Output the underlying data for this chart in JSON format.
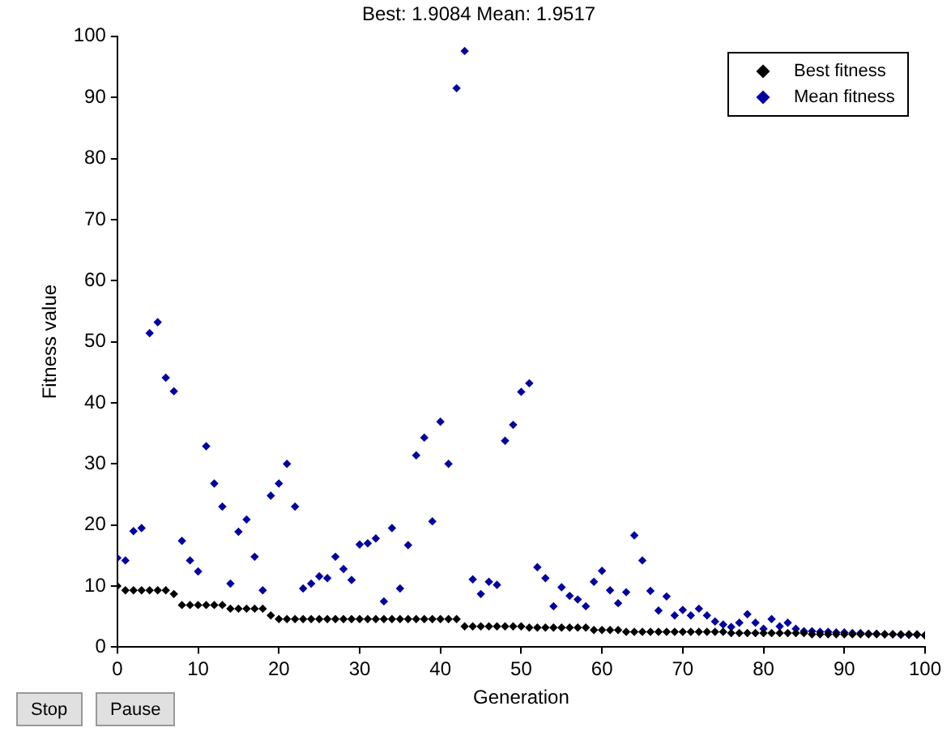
{
  "chart_data": {
    "type": "scatter",
    "title": "Best: 1.9084 Mean: 1.9517",
    "xlabel": "Generation",
    "ylabel": "Fitness value",
    "x": [
      0,
      1,
      2,
      3,
      4,
      5,
      6,
      7,
      8,
      9,
      10,
      11,
      12,
      13,
      14,
      15,
      16,
      17,
      18,
      19,
      20,
      21,
      22,
      23,
      24,
      25,
      26,
      27,
      28,
      29,
      30,
      31,
      32,
      33,
      34,
      35,
      36,
      37,
      38,
      39,
      40,
      41,
      42,
      43,
      44,
      45,
      46,
      47,
      48,
      49,
      50,
      51,
      52,
      53,
      54,
      55,
      56,
      57,
      58,
      59,
      60,
      61,
      62,
      63,
      64,
      65,
      66,
      67,
      68,
      69,
      70,
      71,
      72,
      73,
      74,
      75,
      76,
      77,
      78,
      79,
      80,
      81,
      82,
      83,
      84,
      85,
      86,
      87,
      88,
      89,
      90,
      91,
      92,
      93,
      94,
      95,
      96,
      97,
      98,
      99,
      100
    ],
    "series": [
      {
        "name": "Best fitness",
        "color": "#000000",
        "values": [
          10.0,
          9.3,
          9.3,
          9.3,
          9.3,
          9.3,
          9.3,
          8.7,
          6.9,
          6.9,
          6.9,
          6.9,
          6.9,
          6.9,
          6.3,
          6.3,
          6.3,
          6.3,
          6.3,
          5.2,
          4.6,
          4.6,
          4.6,
          4.6,
          4.6,
          4.6,
          4.6,
          4.6,
          4.6,
          4.6,
          4.6,
          4.6,
          4.6,
          4.6,
          4.6,
          4.6,
          4.6,
          4.6,
          4.6,
          4.6,
          4.6,
          4.6,
          4.6,
          3.4,
          3.4,
          3.4,
          3.4,
          3.4,
          3.4,
          3.4,
          3.4,
          3.2,
          3.2,
          3.2,
          3.2,
          3.2,
          3.2,
          3.2,
          3.2,
          2.8,
          2.8,
          2.8,
          2.8,
          2.5,
          2.5,
          2.5,
          2.5,
          2.5,
          2.5,
          2.5,
          2.5,
          2.5,
          2.5,
          2.5,
          2.5,
          2.5,
          2.3,
          2.3,
          2.3,
          2.3,
          2.3,
          2.3,
          2.3,
          2.3,
          2.3,
          2.3,
          2.1,
          2.1,
          2.1,
          2.1,
          2.1,
          2.1,
          2.1,
          2.1,
          2.1,
          2.1,
          2.1,
          2.1,
          2.1,
          2.1,
          1.9
        ]
      },
      {
        "name": "Mean fitness",
        "color": "#0000a0",
        "values": [
          14.6,
          14.2,
          19.0,
          19.5,
          51.4,
          53.2,
          44.1,
          41.9,
          17.4,
          14.2,
          12.4,
          32.9,
          26.8,
          23.0,
          10.4,
          18.9,
          20.9,
          14.8,
          9.3,
          24.8,
          26.8,
          30.0,
          23.0,
          9.6,
          10.4,
          11.6,
          11.3,
          14.8,
          12.8,
          11.0,
          16.8,
          17.0,
          17.8,
          7.5,
          19.5,
          9.6,
          16.7,
          31.4,
          34.3,
          20.6,
          36.9,
          30.0,
          91.5,
          97.6,
          11.1,
          8.7,
          10.7,
          10.2,
          33.8,
          36.4,
          41.8,
          43.2,
          13.1,
          11.3,
          6.7,
          9.8,
          8.4,
          7.8,
          6.7,
          10.7,
          12.5,
          9.3,
          7.2,
          9.0,
          18.3,
          14.2,
          9.2,
          6.0,
          8.3,
          5.2,
          6.1,
          5.2,
          6.3,
          5.2,
          4.2,
          3.7,
          3.3,
          4.0,
          5.4,
          4.0,
          3.0,
          4.6,
          3.4,
          4.0,
          3.0,
          2.6,
          2.6,
          2.5,
          2.5,
          2.4,
          2.4,
          2.3,
          2.3,
          2.2,
          2.2,
          2.1,
          2.1,
          2.0,
          2.0,
          2.0,
          2.0
        ]
      }
    ],
    "xlim": [
      0,
      100
    ],
    "xticks": [
      0,
      10,
      20,
      30,
      40,
      50,
      60,
      70,
      80,
      90,
      100
    ],
    "ylim": [
      0,
      100
    ],
    "yticks": [
      0,
      10,
      20,
      30,
      40,
      50,
      60,
      70,
      80,
      90,
      100
    ],
    "marker": "diamond",
    "legend": "top right",
    "annotations": [
      "Stop",
      "Pause"
    ]
  }
}
